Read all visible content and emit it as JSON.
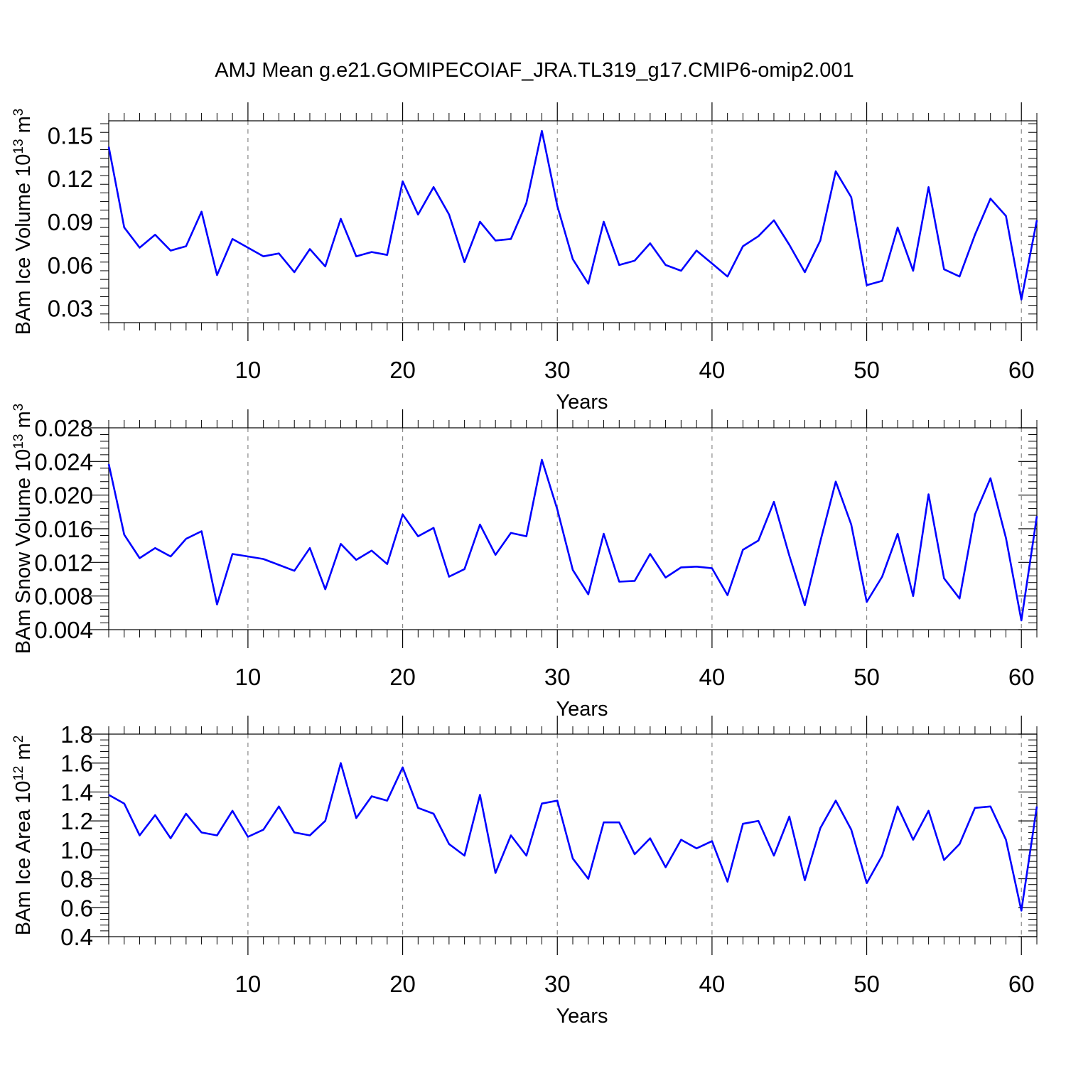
{
  "figure": {
    "title": "AMJ Mean g.e21.GOMIPECOIAF_JRA.TL319_g17.CMIP6-omip2.001",
    "line_color": "#0000ff"
  },
  "chart_data": [
    {
      "type": "line",
      "title": "",
      "xlabel": "Years",
      "ylabel": "BAm Ice Volume 10",
      "ylabel_exp": "13",
      "ylabel_unit": "m",
      "ylabel_unit_exp": "3",
      "xlim": [
        1,
        61
      ],
      "ylim": [
        0.02,
        0.16
      ],
      "xticks": [
        10,
        20,
        30,
        40,
        50,
        60
      ],
      "xtick_labels": [
        "10",
        "20",
        "30",
        "40",
        "50",
        "60"
      ],
      "yticks": [
        0.03,
        0.06,
        0.09,
        0.12,
        0.15
      ],
      "ytick_labels": [
        "0.03",
        "0.06",
        "0.09",
        "0.12",
        "0.15"
      ],
      "grid": "vertical dashed lines at x ticks",
      "x": [
        1,
        2,
        3,
        4,
        5,
        6,
        7,
        8,
        9,
        10,
        11,
        12,
        13,
        14,
        15,
        16,
        17,
        18,
        19,
        20,
        21,
        22,
        23,
        24,
        25,
        26,
        27,
        28,
        29,
        30,
        31,
        32,
        33,
        34,
        35,
        36,
        37,
        38,
        39,
        40,
        41,
        42,
        43,
        44,
        45,
        46,
        47,
        48,
        49,
        50,
        51,
        52,
        53,
        54,
        55,
        56,
        57,
        58,
        59,
        60,
        61
      ],
      "series": [
        {
          "values": [
            0.142,
            0.086,
            0.072,
            0.081,
            0.07,
            0.073,
            0.097,
            0.053,
            0.078,
            0.072,
            0.066,
            0.068,
            0.055,
            0.071,
            0.059,
            0.092,
            0.066,
            0.069,
            0.067,
            0.118,
            0.095,
            0.114,
            0.095,
            0.062,
            0.09,
            0.077,
            0.078,
            0.103,
            0.153,
            0.101,
            0.064,
            0.047,
            0.09,
            0.06,
            0.063,
            0.075,
            0.06,
            0.056,
            0.07,
            0.061,
            0.052,
            0.073,
            0.08,
            0.091,
            0.074,
            0.055,
            0.077,
            0.125,
            0.107,
            0.046,
            0.049,
            0.086,
            0.056,
            0.114,
            0.057,
            0.052,
            0.081,
            0.106,
            0.094,
            0.036,
            0.091
          ]
        }
      ]
    },
    {
      "type": "line",
      "title": "",
      "xlabel": "Years",
      "ylabel": "BAm Snow Volume 10",
      "ylabel_exp": "13",
      "ylabel_unit": "m",
      "ylabel_unit_exp": "3",
      "xlim": [
        1,
        61
      ],
      "ylim": [
        0.004,
        0.028
      ],
      "xticks": [
        10,
        20,
        30,
        40,
        50,
        60
      ],
      "xtick_labels": [
        "10",
        "20",
        "30",
        "40",
        "50",
        "60"
      ],
      "yticks": [
        0.004,
        0.008,
        0.012,
        0.016,
        0.02,
        0.024,
        0.028
      ],
      "ytick_labels": [
        "0.004",
        "0.008",
        "0.012",
        "0.016",
        "0.020",
        "0.024",
        "0.028"
      ],
      "grid": "vertical dashed lines at x ticks",
      "x": [
        1,
        2,
        3,
        4,
        5,
        6,
        7,
        8,
        9,
        10,
        11,
        12,
        13,
        14,
        15,
        16,
        17,
        18,
        19,
        20,
        21,
        22,
        23,
        24,
        25,
        26,
        27,
        28,
        29,
        30,
        31,
        32,
        33,
        34,
        35,
        36,
        37,
        38,
        39,
        40,
        41,
        42,
        43,
        44,
        45,
        46,
        47,
        48,
        49,
        50,
        51,
        52,
        53,
        54,
        55,
        56,
        57,
        58,
        59,
        60,
        61
      ],
      "series": [
        {
          "values": [
            0.0237,
            0.0153,
            0.0125,
            0.0137,
            0.0127,
            0.0148,
            0.0157,
            0.007,
            0.013,
            0.0127,
            0.0124,
            0.0117,
            0.011,
            0.0137,
            0.0088,
            0.0142,
            0.0123,
            0.0134,
            0.0118,
            0.0177,
            0.0151,
            0.0161,
            0.0103,
            0.0112,
            0.0165,
            0.0129,
            0.0155,
            0.0151,
            0.0242,
            0.0183,
            0.0111,
            0.0082,
            0.0154,
            0.0097,
            0.0098,
            0.013,
            0.0102,
            0.0114,
            0.0115,
            0.0113,
            0.0081,
            0.0135,
            0.0146,
            0.0192,
            0.0128,
            0.0069,
            0.0145,
            0.0216,
            0.0165,
            0.0073,
            0.0103,
            0.0154,
            0.008,
            0.0201,
            0.0101,
            0.0077,
            0.0177,
            0.022,
            0.0149,
            0.0051,
            0.0175
          ]
        }
      ]
    },
    {
      "type": "line",
      "title": "",
      "xlabel": "Years",
      "ylabel": "BAm Ice Area 10",
      "ylabel_exp": "12",
      "ylabel_unit": "m",
      "ylabel_unit_exp": "2",
      "xlim": [
        1,
        61
      ],
      "ylim": [
        0.4,
        1.8
      ],
      "xticks": [
        10,
        20,
        30,
        40,
        50,
        60
      ],
      "xtick_labels": [
        "10",
        "20",
        "30",
        "40",
        "50",
        "60"
      ],
      "yticks": [
        0.4,
        0.6,
        0.8,
        1.0,
        1.2,
        1.4,
        1.6,
        1.8
      ],
      "ytick_labels": [
        "0.4",
        "0.6",
        "0.8",
        "1.0",
        "1.2",
        "1.4",
        "1.6",
        "1.8"
      ],
      "grid": "vertical dashed lines at x ticks",
      "x": [
        1,
        2,
        3,
        4,
        5,
        6,
        7,
        8,
        9,
        10,
        11,
        12,
        13,
        14,
        15,
        16,
        17,
        18,
        19,
        20,
        21,
        22,
        23,
        24,
        25,
        26,
        27,
        28,
        29,
        30,
        31,
        32,
        33,
        34,
        35,
        36,
        37,
        38,
        39,
        40,
        41,
        42,
        43,
        44,
        45,
        46,
        47,
        48,
        49,
        50,
        51,
        52,
        53,
        54,
        55,
        56,
        57,
        58,
        59,
        60,
        61
      ],
      "series": [
        {
          "values": [
            1.38,
            1.32,
            1.1,
            1.24,
            1.08,
            1.25,
            1.12,
            1.1,
            1.27,
            1.09,
            1.14,
            1.3,
            1.12,
            1.1,
            1.2,
            1.6,
            1.22,
            1.37,
            1.34,
            1.57,
            1.29,
            1.25,
            1.04,
            0.96,
            1.38,
            0.84,
            1.1,
            0.96,
            1.32,
            1.34,
            0.94,
            0.8,
            1.19,
            1.19,
            0.97,
            1.08,
            0.88,
            1.07,
            1.01,
            1.06,
            0.78,
            1.18,
            1.2,
            0.96,
            1.23,
            0.79,
            1.15,
            1.34,
            1.14,
            0.77,
            0.96,
            1.3,
            1.07,
            1.27,
            0.93,
            1.04,
            1.29,
            1.3,
            1.07,
            0.58,
            1.3
          ]
        }
      ]
    }
  ]
}
